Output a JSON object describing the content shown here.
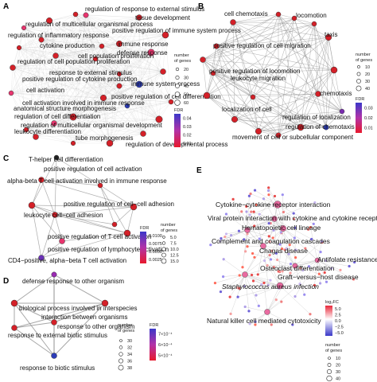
{
  "panels": {
    "A": {
      "letter": "A",
      "terms": [
        "regulation of response to external stimulus",
        "tissue development",
        "regulation of multicellular organismal process",
        "positive regulation of immune system process",
        "regulation of inflammatory response",
        "immune response",
        "cytokine production",
        "defense response",
        "cell population proliferation",
        "regulation of cell population proliferation",
        "response to external stimulus",
        "positive regulation of cytokine production",
        "immune system process",
        "cell activation",
        "positive regulation of cell differentiation",
        "cell activation involved in immune response",
        "anatomical structure morphogenesis",
        "regulation of cell differentiation",
        "regulation of multicellular organismal development",
        "leukocyte differentiation",
        "tube morphogenesis",
        "regulation of developmental process"
      ],
      "legend": {
        "size_title": [
          "number",
          "of genes"
        ],
        "sizes": [
          "20",
          "30",
          "40",
          "50",
          "60"
        ],
        "fdr_title": "FDR",
        "fdr_ticks": [
          "0.04",
          "0.03",
          "0.02",
          "0.01"
        ]
      }
    },
    "B": {
      "letter": "B",
      "terms": [
        "cell chemotaxis",
        "locomotion",
        "taxis",
        "positive regulation of cell migration",
        "positive regulation of locomotion",
        "chemotaxis",
        "leukocyte migration",
        "localization of cell",
        "regulation of localization",
        "regulation of chemotaxis",
        "movement of cell or subcellular component"
      ],
      "legend": {
        "size_title": [
          "number",
          "of genes"
        ],
        "sizes": [
          "10",
          "20",
          "30",
          "40"
        ],
        "fdr_title": "FDR",
        "fdr_ticks": [
          "0.03",
          "0.02",
          "0.01"
        ]
      }
    },
    "C": {
      "letter": "C",
      "terms": [
        "T-helper cell differentiation",
        "positive regulation of cell activation",
        "alpha-beta T cell activation involved in immune response",
        "positive regulation of cell−cell adhesion",
        "leukocyte cell−cell adhesion",
        "positive regulation of T cell activation",
        "positive regulation of lymphocyte activation",
        "CD4−positive, alpha−beta T cell activation"
      ],
      "legend": {
        "size_title": [
          "number",
          "of genes"
        ],
        "sizes": [
          "5.0",
          "7.5",
          "10.0",
          "12.5",
          "15.0"
        ],
        "fdr_title": "FDR",
        "fdr_ticks": [
          "0.0100",
          "0.0075",
          "0.0050",
          "0.0025"
        ]
      }
    },
    "D": {
      "letter": "D",
      "terms": [
        "defense response to other organism",
        "biological process involved in interspecies",
        "interaction between organisms",
        "response to other organism",
        "response to external biotic stimulus",
        "response to biotic stimulus"
      ],
      "legend": {
        "size_title": [
          "number",
          "of genes"
        ],
        "sizes": [
          "30",
          "32",
          "34",
          "36",
          "38"
        ],
        "fdr_title": "FDR",
        "fdr_ticks": [
          "7×10⁻⁴",
          "6×10⁻⁴",
          "5×10⁻⁴"
        ]
      }
    },
    "E": {
      "letter": "E",
      "terms": [
        "Cytokine−cytokine receptor interaction",
        "Viral protein interaction with cytokine and cytokine receptor",
        "Hematopoietic cell lineage",
        "Complement and coagulation cascades",
        "Chagas disease",
        "Antifolate resistance",
        "Osteoclast differentiation",
        "Graft−versus−host disease",
        "Staphylococcus aureus infection",
        "Natural killer cell mediated cytotoxicity"
      ],
      "legend": {
        "fc_title": "log₂FC",
        "fc_ticks": [
          "5.0",
          "2.5",
          "0.0",
          "−2.5",
          "−5.0"
        ],
        "size_title": [
          "number",
          "of genes"
        ],
        "sizes": [
          "10",
          "20",
          "30",
          "40"
        ]
      }
    }
  },
  "colors": {
    "red": "#d42028",
    "pink": "#e8356e",
    "blue": "#2c3cb8",
    "edge": "#b8b8b8",
    "edge_dark": "#8a8a8a"
  }
}
